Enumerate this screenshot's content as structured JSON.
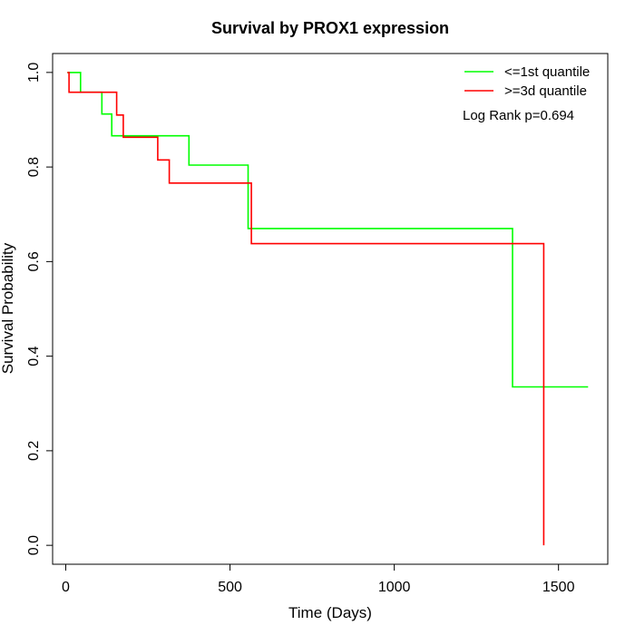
{
  "chart_data": {
    "type": "line",
    "title": "Survival by PROX1 expression",
    "xlabel": "Time (Days)",
    "ylabel": "Survival Probability",
    "xlim": [
      -40,
      1650
    ],
    "ylim": [
      -0.04,
      1.04
    ],
    "x_ticks": [
      0,
      500,
      1000,
      1500
    ],
    "y_ticks": [
      0.0,
      0.2,
      0.4,
      0.6,
      0.8,
      1.0
    ],
    "x_tick_labels": [
      "0",
      "500",
      "1000",
      "1500"
    ],
    "y_tick_labels": [
      "0.0",
      "0.2",
      "0.4",
      "0.6",
      "0.8",
      "1.0"
    ],
    "grid": false,
    "legend_position": "top-right",
    "annotation": "Log Rank p=0.694",
    "series": [
      {
        "name": "<=1st quantile",
        "color": "#00ff00",
        "step_points": [
          [
            5,
            1.0
          ],
          [
            45,
            0.958
          ],
          [
            110,
            0.912
          ],
          [
            140,
            0.866
          ],
          [
            375,
            0.804
          ],
          [
            555,
            0.67
          ],
          [
            1360,
            0.335
          ],
          [
            1590,
            0.335
          ]
        ]
      },
      {
        "name": ">=3d quantile",
        "color": "#ff0000",
        "step_points": [
          [
            5,
            1.0
          ],
          [
            10,
            0.958
          ],
          [
            155,
            0.91
          ],
          [
            175,
            0.863
          ],
          [
            280,
            0.815
          ],
          [
            315,
            0.766
          ],
          [
            565,
            0.638
          ],
          [
            1455,
            0.0
          ]
        ]
      }
    ]
  }
}
